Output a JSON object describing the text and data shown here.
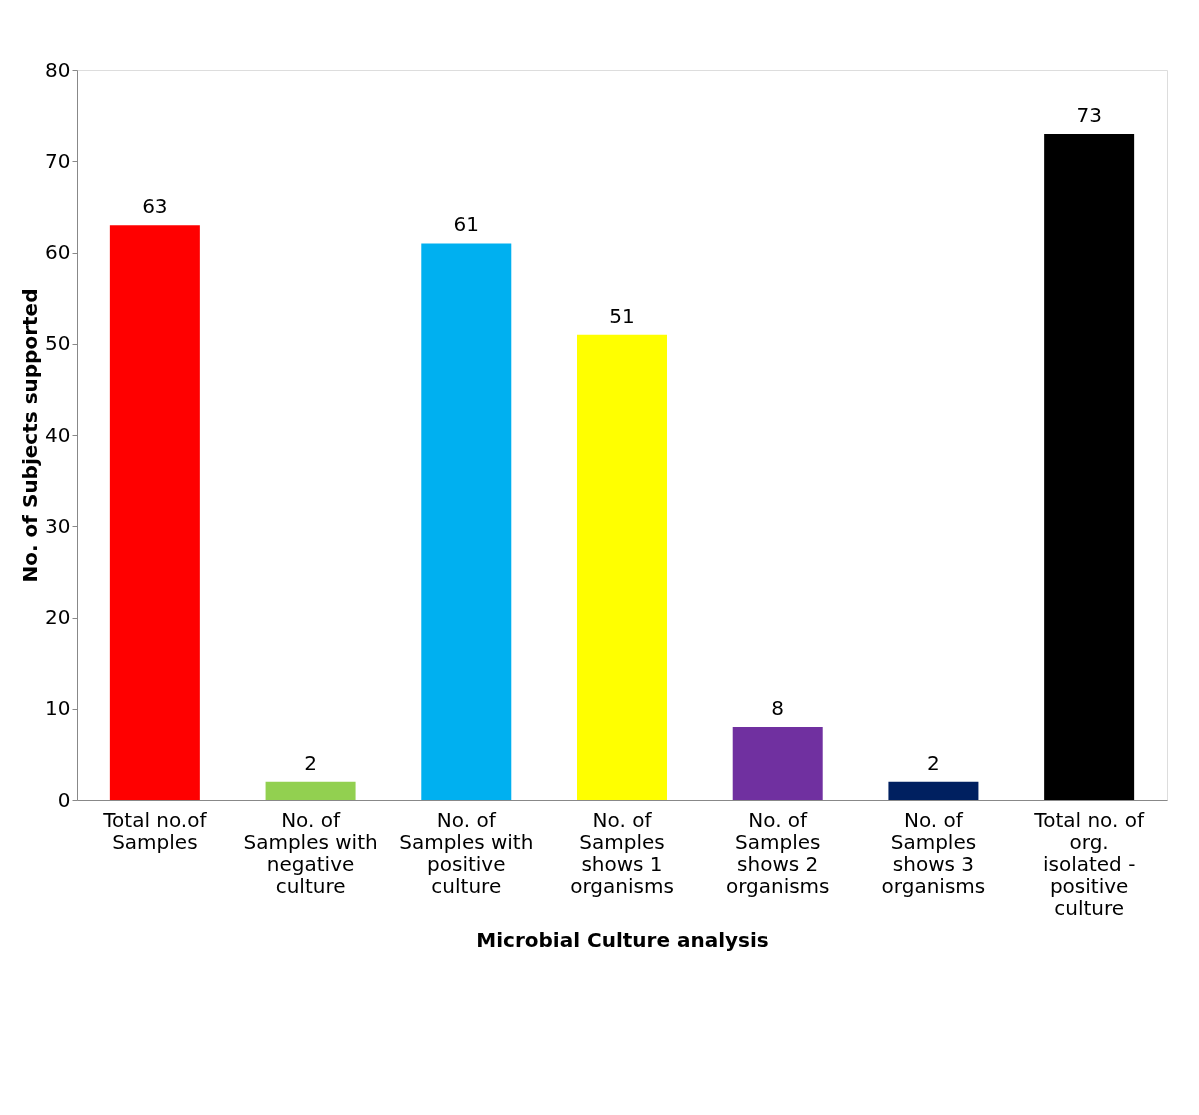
{
  "chart_data": {
    "type": "bar",
    "xlabel": "Microbial Culture analysis",
    "ylabel": "No. of Subjects supported",
    "categories": [
      "Total no.of Samples",
      "No. of Samples with negative culture",
      "No. of Samples with positive culture",
      "No. of Samples shows 1 organisms",
      "No. of Samples shows 2 organisms",
      "No. of Samples shows 3 organisms",
      "Total no. of org. isolated - positive culture"
    ],
    "values": [
      63,
      2,
      61,
      51,
      8,
      2,
      73
    ],
    "colors": [
      "#ff0000",
      "#92d050",
      "#00b0f0",
      "#ffff00",
      "#7030a0",
      "#002060",
      "#000000"
    ],
    "ylim": [
      0,
      80
    ],
    "yticks": [
      0,
      10,
      20,
      30,
      40,
      50,
      60,
      70,
      80
    ],
    "grid": false,
    "data_labels": true
  }
}
